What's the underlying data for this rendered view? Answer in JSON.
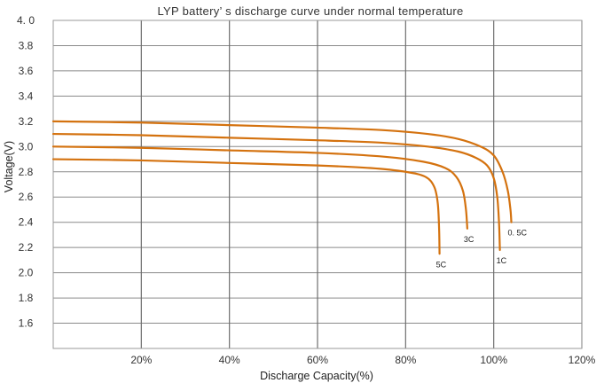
{
  "chart_data": {
    "type": "line",
    "title": "LYP battery’ s discharge curve under normal temperature",
    "xlabel": "Discharge Capacity(%)",
    "ylabel": "Voltage(V)",
    "xlim": [
      0,
      120
    ],
    "ylim": [
      1.4,
      4.0
    ],
    "x_ticks": [
      20,
      40,
      60,
      80,
      100,
      120
    ],
    "x_tick_labels": [
      "20%",
      "40%",
      "60%",
      "80%",
      "100%",
      "120%"
    ],
    "y_ticks": [
      1.6,
      1.8,
      2.0,
      2.2,
      2.4,
      2.6,
      2.8,
      3.0,
      3.2,
      3.4,
      3.6,
      3.8,
      4.0
    ],
    "y_tick_labels": [
      "1.6",
      "1.8",
      "2.0",
      "2.2",
      "2.4",
      "2.6",
      "2.8",
      "3.0",
      "3.2",
      "3.4",
      "3.6",
      "3.8",
      "4. 0"
    ],
    "grid": true,
    "line_color": "#d4720f",
    "series": [
      {
        "name": "0. 5C",
        "x": [
          0,
          20,
          40,
          60,
          75,
          85,
          92,
          97,
          100,
          102,
          103.2,
          103.8,
          104
        ],
        "y": [
          3.2,
          3.19,
          3.17,
          3.15,
          3.13,
          3.1,
          3.06,
          3.0,
          2.93,
          2.8,
          2.65,
          2.5,
          2.4
        ]
      },
      {
        "name": "1C",
        "x": [
          0,
          20,
          40,
          60,
          75,
          85,
          92,
          96,
          98.5,
          100,
          100.8,
          101.2,
          101.4
        ],
        "y": [
          3.1,
          3.09,
          3.07,
          3.05,
          3.03,
          3.0,
          2.96,
          2.91,
          2.85,
          2.75,
          2.6,
          2.4,
          2.18
        ]
      },
      {
        "name": "3C",
        "x": [
          0,
          20,
          40,
          60,
          75,
          84,
          89,
          91.5,
          93,
          93.7,
          94
        ],
        "y": [
          3.0,
          2.99,
          2.97,
          2.95,
          2.92,
          2.88,
          2.83,
          2.76,
          2.65,
          2.5,
          2.35
        ]
      },
      {
        "name": "5C",
        "x": [
          0,
          20,
          40,
          60,
          72,
          80,
          84.5,
          86.5,
          87.3,
          87.6,
          87.7
        ],
        "y": [
          2.9,
          2.89,
          2.87,
          2.85,
          2.83,
          2.8,
          2.76,
          2.68,
          2.55,
          2.35,
          2.15
        ]
      }
    ]
  }
}
